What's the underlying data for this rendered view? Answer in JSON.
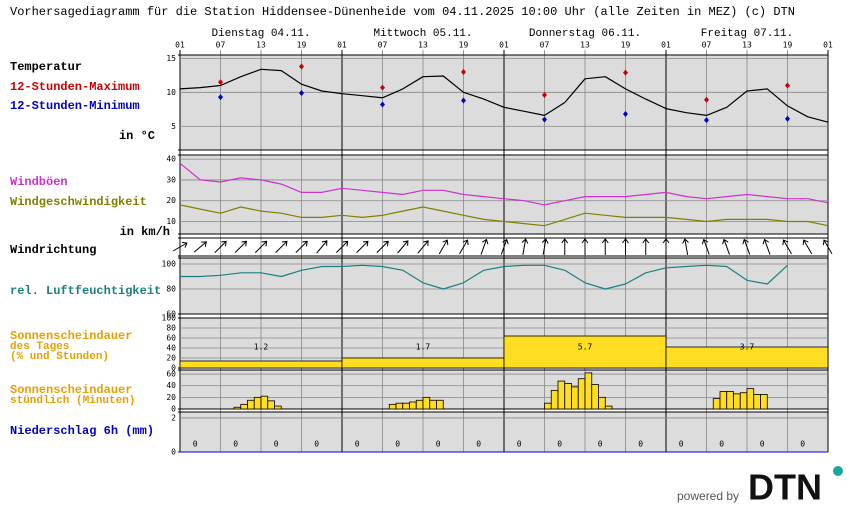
{
  "title": "Vorhersagediagramm für die Station Hiddensee-Dünenheide vom 04.11.2025 10:00 Uhr (alle Zeiten in MEZ)   (c) DTN",
  "days": [
    "Dienstag 04.11.",
    "Mittwoch 05.11.",
    "Donnerstag 06.11.",
    "Freitag 07.11."
  ],
  "footer": {
    "powered_by": "powered by",
    "logo": "DTN"
  },
  "chart_data": [
    {
      "type": "line",
      "unit": "in °C",
      "xlim": [
        0,
        96
      ],
      "xticks": [
        {
          "value": 0,
          "label": "01"
        },
        {
          "value": 6,
          "label": "07"
        },
        {
          "value": 12,
          "label": "13"
        },
        {
          "value": 18,
          "label": "19"
        },
        {
          "value": 24,
          "label": "01"
        },
        {
          "value": 30,
          "label": "07"
        },
        {
          "value": 36,
          "label": "13"
        },
        {
          "value": 42,
          "label": "19"
        },
        {
          "value": 48,
          "label": "01"
        },
        {
          "value": 54,
          "label": "07"
        },
        {
          "value": 60,
          "label": "13"
        },
        {
          "value": 66,
          "label": "19"
        },
        {
          "value": 72,
          "label": "01"
        },
        {
          "value": 78,
          "label": "07"
        },
        {
          "value": 84,
          "label": "13"
        },
        {
          "value": 90,
          "label": "19"
        },
        {
          "value": 96,
          "label": "01"
        }
      ],
      "ylim": [
        1.5,
        15.5
      ],
      "yticks": [
        5,
        10,
        15
      ],
      "series": [
        {
          "name": "Temperatur",
          "color": "#000000",
          "style": "line",
          "x": [
            0,
            3,
            6,
            9,
            12,
            15,
            18,
            21,
            24,
            27,
            30,
            33,
            36,
            39,
            42,
            45,
            48,
            51,
            54,
            57,
            60,
            63,
            66,
            69,
            72,
            75,
            78,
            81,
            84,
            87,
            90,
            93,
            96
          ],
          "values": [
            10.5,
            10.7,
            11.0,
            12.3,
            13.4,
            13.2,
            11.2,
            10.2,
            9.8,
            9.5,
            9.2,
            10.5,
            12.3,
            12.4,
            10.0,
            9.0,
            7.8,
            7.2,
            6.6,
            8.5,
            12.0,
            12.3,
            10.5,
            9.0,
            7.6,
            7.0,
            6.6,
            7.8,
            10.2,
            10.5,
            8.0,
            6.4,
            5.6
          ]
        },
        {
          "name": "12-Stunden-Maximum",
          "color": "#cc0000",
          "style": "marker",
          "x": [
            6,
            18,
            30,
            42,
            54,
            66,
            78,
            90
          ],
          "values": [
            11.5,
            13.8,
            10.7,
            13.0,
            9.6,
            12.9,
            8.9,
            11.0
          ]
        },
        {
          "name": "12-Stunden-Minimum",
          "color": "#0000cc",
          "style": "marker",
          "x": [
            6,
            18,
            30,
            42,
            54,
            66,
            78,
            90
          ],
          "values": [
            9.3,
            9.9,
            8.2,
            8.8,
            6.0,
            6.8,
            5.9,
            6.1
          ]
        }
      ]
    },
    {
      "type": "line",
      "unit": "in km/h",
      "ylim": [
        4,
        42
      ],
      "yticks": [
        10,
        20,
        30,
        40
      ],
      "series": [
        {
          "name": "Windböen",
          "color": "#cc33cc",
          "style": "line",
          "x": [
            0,
            3,
            6,
            9,
            12,
            15,
            18,
            21,
            24,
            27,
            30,
            33,
            36,
            39,
            42,
            45,
            48,
            51,
            54,
            57,
            60,
            63,
            66,
            69,
            72,
            75,
            78,
            81,
            84,
            87,
            90,
            93,
            96
          ],
          "values": [
            38,
            30,
            29,
            31,
            30,
            28,
            24,
            24,
            26,
            25,
            24,
            23,
            25,
            25,
            23,
            22,
            21,
            20,
            18,
            20,
            22,
            22,
            22,
            23,
            24,
            22,
            21,
            22,
            23,
            22,
            21,
            21,
            19
          ]
        },
        {
          "name": "Windgeschwindigkeit",
          "color": "#808000",
          "style": "line",
          "x": [
            0,
            3,
            6,
            9,
            12,
            15,
            18,
            21,
            24,
            27,
            30,
            33,
            36,
            39,
            42,
            45,
            48,
            51,
            54,
            57,
            60,
            63,
            66,
            69,
            72,
            75,
            78,
            81,
            84,
            87,
            90,
            93,
            96
          ],
          "values": [
            18,
            16,
            14,
            17,
            15,
            14,
            12,
            12,
            13,
            12,
            13,
            15,
            17,
            15,
            13,
            11,
            10,
            9,
            8,
            11,
            14,
            13,
            12,
            12,
            12,
            11,
            10,
            11,
            11,
            11,
            10,
            10,
            8
          ]
        }
      ]
    },
    {
      "type": "arrows",
      "title": "Windrichtung",
      "x": [
        0,
        3,
        6,
        9,
        12,
        15,
        18,
        21,
        24,
        27,
        30,
        33,
        36,
        39,
        42,
        45,
        48,
        51,
        54,
        57,
        60,
        63,
        66,
        69,
        72,
        75,
        78,
        81,
        84,
        87,
        90,
        93,
        96
      ],
      "values": [
        60,
        50,
        45,
        45,
        45,
        45,
        45,
        40,
        45,
        45,
        45,
        40,
        40,
        30,
        30,
        20,
        20,
        10,
        10,
        0,
        0,
        0,
        0,
        0,
        0,
        -10,
        -20,
        -20,
        -20,
        -20,
        -30,
        -30,
        -30
      ]
    },
    {
      "type": "line",
      "ylim": [
        60,
        104.8
      ],
      "yticks": [
        60,
        80,
        100
      ],
      "series": [
        {
          "name": "rel. Luftfeuchtigkeit",
          "color": "#1a8080",
          "style": "line",
          "x": [
            0,
            3,
            6,
            9,
            12,
            15,
            18,
            21,
            24,
            27,
            30,
            33,
            36,
            39,
            42,
            45,
            48,
            51,
            54,
            57,
            60,
            63,
            66,
            69,
            72,
            75,
            78,
            81,
            84,
            87,
            90,
            93,
            96
          ],
          "values": [
            90,
            90,
            91,
            93,
            93,
            90,
            95,
            98,
            98,
            99,
            98,
            95,
            85,
            80,
            85,
            95,
            98,
            99,
            99,
            95,
            85,
            80,
            84,
            93,
            97,
            98,
            99,
            98,
            87,
            84,
            99,
            null,
            null
          ]
        }
      ]
    },
    {
      "type": "histogram",
      "title": [
        "Sonnenscheindauer",
        "des Tages",
        "(% und Stunden)"
      ],
      "ylim": [
        0,
        100
      ],
      "yticks": [
        0,
        20,
        40,
        60,
        80,
        100
      ],
      "color": "#ffdd22",
      "bins": [
        0,
        24,
        48,
        72,
        96
      ],
      "values": [
        14,
        20,
        64,
        42
      ],
      "hours": [
        1.2,
        1.7,
        5.7,
        3.7
      ]
    },
    {
      "type": "bar",
      "title": [
        "Sonnenscheindauer",
        "stündlich (Minuten)"
      ],
      "ylim": [
        0,
        67
      ],
      "yticks": [
        0,
        20,
        40,
        60
      ],
      "color": "#ffdd22",
      "x": [
        8,
        9,
        10,
        11,
        12,
        13,
        14,
        31,
        32,
        33,
        34,
        35,
        36,
        37,
        38,
        54,
        55,
        56,
        57,
        58,
        59,
        60,
        61,
        62,
        63,
        79,
        80,
        81,
        82,
        83,
        84,
        85,
        86
      ],
      "values": [
        3,
        8,
        15,
        20,
        22,
        14,
        5,
        8,
        10,
        10,
        12,
        15,
        20,
        15,
        15,
        10,
        32,
        48,
        44,
        38,
        52,
        62,
        42,
        20,
        5,
        18,
        30,
        30,
        26,
        28,
        35,
        25,
        25
      ]
    },
    {
      "type": "text",
      "title": "Niederschlag 6h (mm)",
      "ylim": [
        0,
        2.35
      ],
      "yticks": [
        0,
        2
      ],
      "x": [
        2.25,
        8.25,
        14.25,
        20.25,
        26.25,
        32.25,
        38.25,
        44.25,
        50.25,
        56.25,
        62.25,
        68.25,
        74.25,
        80.25,
        86.25,
        92.25
      ],
      "values": [
        0,
        0,
        0,
        0,
        0,
        0,
        0,
        0,
        0,
        0,
        0,
        0,
        0,
        0,
        0,
        0
      ]
    }
  ]
}
